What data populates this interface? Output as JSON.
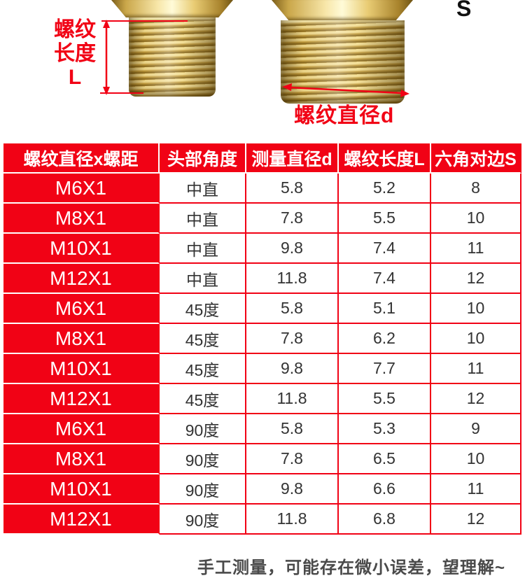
{
  "photo": {
    "length_label": {
      "line1": "螺纹",
      "line2": "长度",
      "line3": "L"
    },
    "diameter_label": "螺纹直径d",
    "hex_width_label": "S"
  },
  "table": {
    "headers": [
      "螺纹直径x螺距",
      "头部角度",
      "测量直径d",
      "螺纹长度L",
      "六角对边S"
    ],
    "rows": [
      [
        "M6X1",
        "中直",
        "5.8",
        "5.2",
        "8"
      ],
      [
        "M8X1",
        "中直",
        "7.8",
        "5.5",
        "10"
      ],
      [
        "M10X1",
        "中直",
        "9.8",
        "7.4",
        "11"
      ],
      [
        "M12X1",
        "中直",
        "11.8",
        "7.4",
        "12"
      ],
      [
        "M6X1",
        "45度",
        "5.8",
        "5.1",
        "10"
      ],
      [
        "M8X1",
        "45度",
        "7.8",
        "6.2",
        "10"
      ],
      [
        "M10X1",
        "45度",
        "9.8",
        "7.7",
        "11"
      ],
      [
        "M12X1",
        "45度",
        "11.8",
        "5.5",
        "12"
      ],
      [
        "M6X1",
        "90度",
        "5.8",
        "5.3",
        "9"
      ],
      [
        "M8X1",
        "90度",
        "7.8",
        "6.5",
        "10"
      ],
      [
        "M10X1",
        "90度",
        "9.8",
        "6.6",
        "11"
      ],
      [
        "M12X1",
        "90度",
        "11.8",
        "6.8",
        "12"
      ]
    ]
  },
  "footer": {
    "note": "手工测量，可能存在微小误差，望理解~"
  },
  "colors": {
    "accent_red": "#f10215",
    "table_text": "#333333",
    "note_text": "#4a4a4a",
    "brass": "#d8b45a"
  }
}
